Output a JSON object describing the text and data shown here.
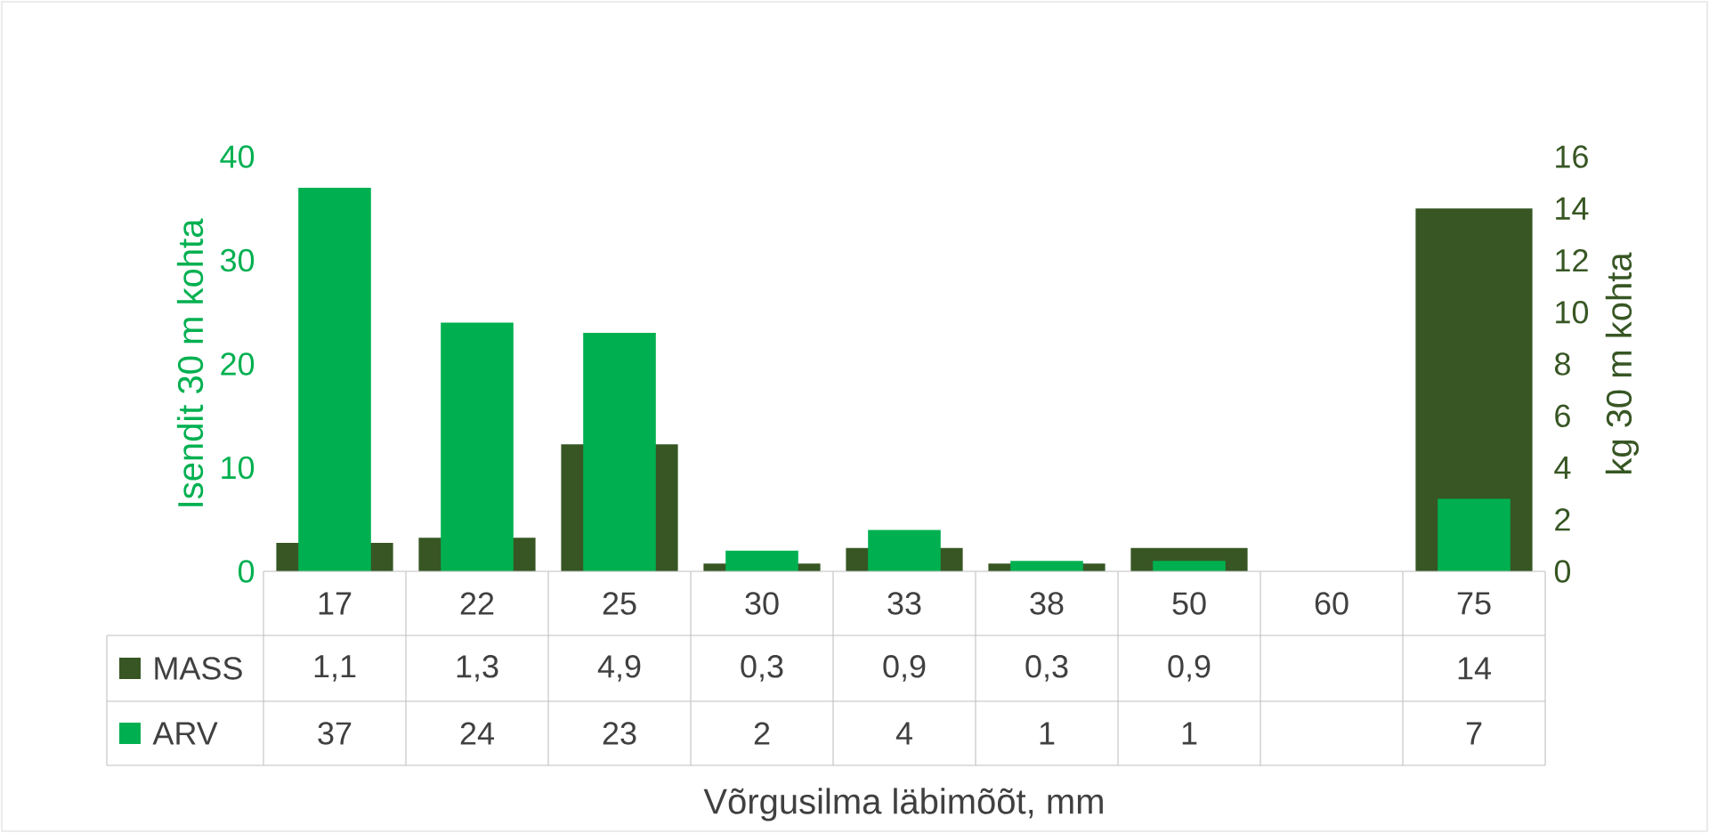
{
  "chart_data": {
    "type": "bar",
    "categories": [
      "17",
      "22",
      "25",
      "30",
      "33",
      "38",
      "50",
      "60",
      "75"
    ],
    "series": [
      {
        "name": "MASS",
        "color": "#375623",
        "axis": "y2",
        "values": [
          1.1,
          1.3,
          4.9,
          0.3,
          0.9,
          0.3,
          0.9,
          null,
          14
        ],
        "value_labels": [
          "1,1",
          "1,3",
          "4,9",
          "0,3",
          "0,9",
          "0,3",
          "0,9",
          null,
          "14"
        ]
      },
      {
        "name": "ARV",
        "color": "#00b050",
        "values": [
          37,
          24,
          23,
          2,
          4,
          1,
          1,
          null,
          7
        ],
        "value_labels": [
          "37",
          "24",
          "23",
          "2",
          "4",
          "1",
          "1",
          null,
          "7"
        ]
      }
    ],
    "ylim": [
      0,
      40
    ],
    "yticks": [
      0,
      10,
      20,
      30,
      40
    ],
    "y2lim": [
      0,
      16
    ],
    "y2ticks": [
      0,
      2,
      4,
      6,
      8,
      10,
      12,
      14,
      16
    ],
    "ylabel": "Isendit 30 m kohta",
    "y2label": "kg 30 m kohta",
    "xlabel": "Võrgusilma läbimõõt, mm",
    "legend": "bottom"
  }
}
